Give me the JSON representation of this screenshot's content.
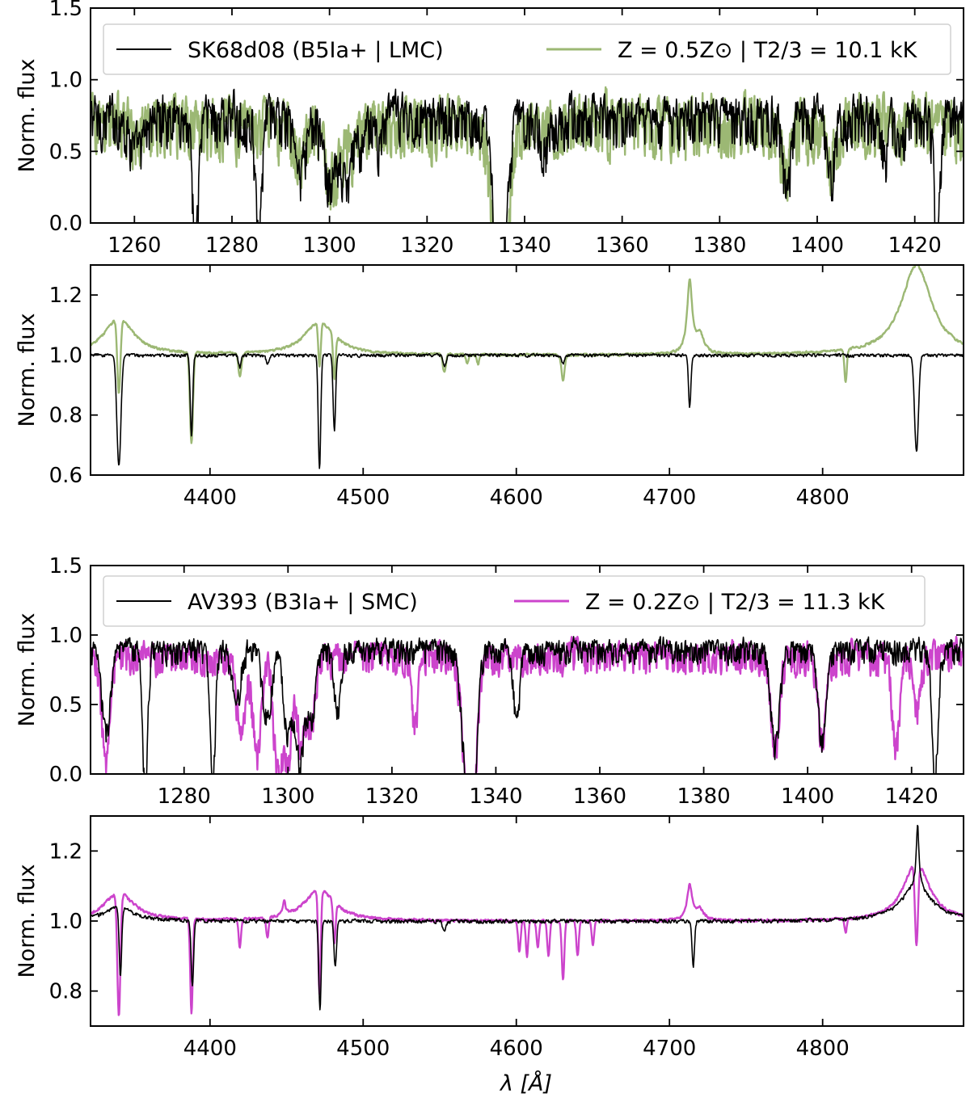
{
  "figure": {
    "xlabel": "λ [Å]",
    "colors": {
      "observed": "#000000",
      "lmc_model": "#9cb874",
      "smc_model": "#cc44cc",
      "frame": "#000000"
    }
  },
  "chart_data": [
    {
      "type": "line",
      "id": "panel-lmc-uv",
      "xlim": [
        1251,
        1430
      ],
      "ylim": [
        0.0,
        1.5
      ],
      "xticks": [
        1260,
        1280,
        1300,
        1320,
        1340,
        1360,
        1380,
        1400,
        1420
      ],
      "yticks": [
        0.0,
        0.5,
        1.0,
        1.5
      ],
      "ytick_labels": [
        "0.0",
        "0.5",
        "1.0",
        "1.5"
      ],
      "ylabel": "Norm. flux",
      "legend": [
        {
          "label": "SK68d08 (B5Ia+ | LMC)",
          "color": "#000000"
        },
        {
          "label": "Z = 0.5Z⊙ | T2/3 = 10.1 kK",
          "color": "#9cb874"
        }
      ],
      "series": [
        {
          "name": "SK68d08 (B5Ia+ | LMC)",
          "color": "#000000",
          "continuum": 0.75,
          "noise": 0.14,
          "lines": [
            [
              1260,
              0.15,
              1.2
            ],
            [
              1261.5,
              0.15,
              1.0
            ],
            [
              1272.5,
              0.9,
              0.6
            ],
            [
              1285.5,
              0.9,
              0.6
            ],
            [
              1294,
              0.4,
              1.0
            ],
            [
              1300,
              0.45,
              1.2
            ],
            [
              1302.5,
              0.3,
              1.0
            ],
            [
              1304,
              0.3,
              1.0
            ],
            [
              1306.5,
              0.2,
              0.8
            ],
            [
              1310,
              0.15,
              0.8
            ],
            [
              1334.5,
              0.75,
              1.2
            ],
            [
              1335.7,
              0.7,
              1.0
            ],
            [
              1344,
              0.25,
              0.7
            ],
            [
              1393.8,
              0.55,
              0.8
            ],
            [
              1402.8,
              0.45,
              0.8
            ],
            [
              1414,
              0.3,
              0.6
            ],
            [
              1417,
              0.3,
              0.6
            ],
            [
              1424.5,
              0.85,
              0.6
            ]
          ]
        },
        {
          "name": "Z = 0.5Z⊙ | T2/3 = 10.1 kK",
          "color": "#9cb874",
          "continuum": 0.72,
          "noise": 0.17,
          "lines": [
            [
              1260,
              0.1,
              1.2
            ],
            [
              1294,
              0.3,
              1.0
            ],
            [
              1300,
              0.4,
              1.2
            ],
            [
              1302.5,
              0.2,
              1.0
            ],
            [
              1304.5,
              0.2,
              1.0
            ],
            [
              1334.5,
              0.7,
              1.5
            ],
            [
              1335.7,
              0.6,
              1.2
            ],
            [
              1393.8,
              0.3,
              1.0
            ],
            [
              1402.8,
              0.25,
              1.0
            ]
          ]
        }
      ]
    },
    {
      "type": "line",
      "id": "panel-lmc-optical",
      "xlim": [
        4322,
        4892
      ],
      "ylim": [
        0.6,
        1.3
      ],
      "xticks": [
        4400,
        4500,
        4600,
        4700,
        4800
      ],
      "yticks": [
        0.6,
        0.8,
        1.0,
        1.2
      ],
      "ytick_labels": [
        "0.6",
        "0.8",
        "1.0",
        "1.2"
      ],
      "ylabel": "Norm. flux",
      "series": [
        {
          "name": "SK68d08 (B5Ia+ | LMC)",
          "color": "#000000",
          "continuum": 1.0,
          "noise": 0.004,
          "lines": [
            [
              4340.5,
              0.37,
              1.3
            ],
            [
              4387.9,
              0.27,
              0.8
            ],
            [
              4419.5,
              0.04,
              0.8
            ],
            [
              4437.5,
              0.03,
              0.8
            ],
            [
              4471.5,
              0.38,
              0.8
            ],
            [
              4481.2,
              0.25,
              0.8
            ],
            [
              4553,
              0.04,
              1.0
            ],
            [
              4630.5,
              0.03,
              1.0
            ],
            [
              4713.2,
              0.17,
              0.8
            ],
            [
              4861.3,
              0.32,
              1.3
            ],
            [
              4921,
              0.05,
              1.0
            ]
          ]
        },
        {
          "name": "Z = 0.5Z⊙ | T2/3 = 10.1 kK",
          "color": "#9cb874",
          "continuum": 1.0,
          "noise": 0.003,
          "emission": [
            [
              4340.5,
              0.12,
              12
            ],
            [
              4471.5,
              0.11,
              12
            ],
            [
              4713.2,
              0.24,
              2
            ],
            [
              4720,
              0.06,
              3
            ],
            [
              4861.3,
              0.3,
              12
            ]
          ],
          "lines": [
            [
              4340.5,
              0.25,
              1.0
            ],
            [
              4387.9,
              0.3,
              1.0
            ],
            [
              4419.5,
              0.08,
              1.0
            ],
            [
              4471.5,
              0.15,
              0.8
            ],
            [
              4481.2,
              0.15,
              0.8
            ],
            [
              4553,
              0.06,
              1.0
            ],
            [
              4568,
              0.03,
              0.8
            ],
            [
              4575,
              0.03,
              0.8
            ],
            [
              4630.5,
              0.09,
              1.0
            ],
            [
              4815,
              0.11,
              0.8
            ]
          ]
        }
      ]
    },
    {
      "type": "line",
      "id": "panel-smc-uv",
      "xlim": [
        1262,
        1430
      ],
      "ylim": [
        0.0,
        1.5
      ],
      "xticks": [
        1280,
        1300,
        1320,
        1340,
        1360,
        1380,
        1400,
        1420
      ],
      "yticks": [
        0.0,
        0.5,
        1.0,
        1.5
      ],
      "ytick_labels": [
        "0.0",
        "0.5",
        "1.0",
        "1.5"
      ],
      "ylabel": "Norm. flux",
      "legend": [
        {
          "label": "AV393 (B3Ia+ | SMC)",
          "color": "#000000"
        },
        {
          "label": "Z = 0.2Z⊙ | T2/3 = 11.3 kK",
          "color": "#cc44cc"
        }
      ],
      "series": [
        {
          "name": "AV393 (B3Ia+ | SMC)",
          "color": "#000000",
          "continuum": 0.9,
          "noise": 0.07,
          "lines": [
            [
              1265,
              0.6,
              0.8
            ],
            [
              1272.5,
              0.95,
              0.5
            ],
            [
              1285.5,
              0.95,
              0.5
            ],
            [
              1290,
              0.4,
              0.8
            ],
            [
              1296,
              0.5,
              0.8
            ],
            [
              1300,
              0.6,
              0.8
            ],
            [
              1302.3,
              0.8,
              0.8
            ],
            [
              1304.5,
              0.5,
              0.8
            ],
            [
              1309.5,
              0.45,
              0.6
            ],
            [
              1334.5,
              0.9,
              1.0
            ],
            [
              1335.7,
              0.8,
              0.8
            ],
            [
              1344,
              0.5,
              0.6
            ],
            [
              1393.8,
              0.7,
              0.8
            ],
            [
              1402.8,
              0.65,
              0.8
            ],
            [
              1424.5,
              0.9,
              0.6
            ]
          ]
        },
        {
          "name": "Z = 0.2Z⊙ | T2/3 = 11.3 kK",
          "color": "#cc44cc",
          "continuum": 0.86,
          "noise": 0.09,
          "lines": [
            [
              1265,
              0.75,
              0.8
            ],
            [
              1291,
              0.6,
              0.8
            ],
            [
              1294,
              0.7,
              0.8
            ],
            [
              1298,
              0.8,
              0.8
            ],
            [
              1300,
              0.75,
              0.8
            ],
            [
              1302.5,
              0.6,
              0.8
            ],
            [
              1304.5,
              0.5,
              0.8
            ],
            [
              1324.5,
              0.5,
              0.6
            ],
            [
              1334.5,
              0.85,
              1.0
            ],
            [
              1335.7,
              0.75,
              0.8
            ],
            [
              1393.8,
              0.65,
              0.8
            ],
            [
              1402.8,
              0.6,
              0.8
            ],
            [
              1417,
              0.65,
              0.7
            ],
            [
              1421,
              0.4,
              0.7
            ]
          ]
        }
      ]
    },
    {
      "type": "line",
      "id": "panel-smc-optical",
      "xlim": [
        4322,
        4892
      ],
      "ylim": [
        0.7,
        1.3
      ],
      "xticks": [
        4400,
        4500,
        4600,
        4700,
        4800
      ],
      "yticks": [
        0.8,
        1.0,
        1.2
      ],
      "ytick_labels": [
        "0.8",
        "1.0",
        "1.2"
      ],
      "ylabel": "Norm. flux",
      "series": [
        {
          "name": "AV393 (B3Ia+ | SMC)",
          "color": "#000000",
          "continuum": 1.0,
          "noise": 0.004,
          "emission": [
            [
              4340.5,
              0.04,
              12
            ],
            [
              4861.3,
              0.1,
              12
            ],
            [
              4862,
              0.18,
              1
            ]
          ],
          "lines": [
            [
              4341.5,
              0.2,
              0.8
            ],
            [
              4388.5,
              0.19,
              0.8
            ],
            [
              4471.8,
              0.25,
              0.8
            ],
            [
              4481.8,
              0.13,
              0.8
            ],
            [
              4553,
              0.03,
              1.0
            ],
            [
              4715.5,
              0.13,
              0.8
            ]
          ]
        },
        {
          "name": "Z = 0.2Z⊙ | T2/3 = 11.3 kK",
          "color": "#cc44cc",
          "continuum": 1.0,
          "noise": 0.003,
          "emission": [
            [
              4340.5,
              0.08,
              12
            ],
            [
              4448.5,
              0.04,
              1
            ],
            [
              4471.5,
              0.09,
              12
            ],
            [
              4713.2,
              0.1,
              2
            ],
            [
              4720,
              0.03,
              3
            ],
            [
              4861.3,
              0.17,
              10
            ]
          ],
          "lines": [
            [
              4340.5,
              0.35,
              1.0
            ],
            [
              4387.9,
              0.27,
              0.8
            ],
            [
              4419.5,
              0.08,
              0.8
            ],
            [
              4437.5,
              0.06,
              0.8
            ],
            [
              4471.5,
              0.3,
              0.8
            ],
            [
              4481.2,
              0.12,
              0.8
            ],
            [
              4602,
              0.09,
              0.8
            ],
            [
              4607,
              0.1,
              0.8
            ],
            [
              4614,
              0.08,
              0.8
            ],
            [
              4621,
              0.1,
              0.8
            ],
            [
              4630.5,
              0.17,
              0.8
            ],
            [
              4640,
              0.1,
              0.8
            ],
            [
              4650,
              0.07,
              0.8
            ],
            [
              4815,
              0.04,
              0.8
            ],
            [
              4861.3,
              0.24,
              1.0
            ]
          ]
        }
      ]
    }
  ]
}
